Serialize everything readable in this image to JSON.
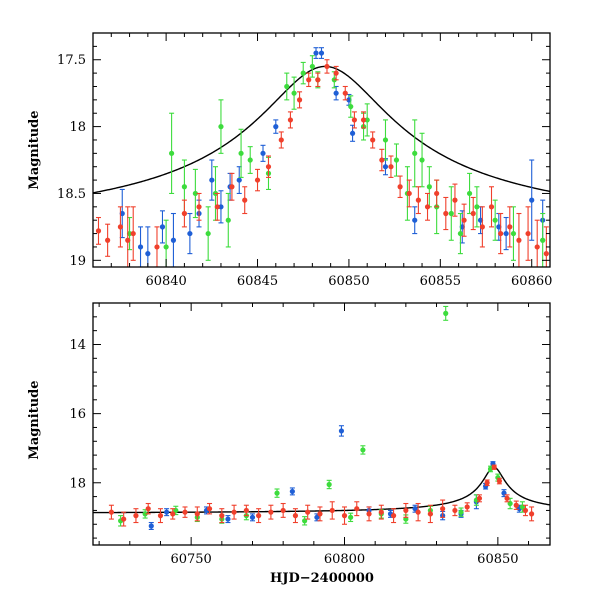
{
  "colors": {
    "blue": "#1f5fd6",
    "green": "#3ddc3d",
    "red": "#f0402c",
    "model": "#000000"
  },
  "chart_data": [
    {
      "type": "scatter",
      "title": "",
      "xlabel": "",
      "ylabel": "Magnitude",
      "xlim": [
        60836,
        60861
      ],
      "ylim": [
        19.05,
        17.3
      ],
      "y_inverted": true,
      "x_ticks": [
        60840,
        60845,
        60850,
        60855,
        60860
      ],
      "y_ticks": [
        17.5,
        18,
        18.5,
        19
      ],
      "x_tick_labels": [
        "60840",
        "60845",
        "60850",
        "60855",
        "60860"
      ],
      "y_tick_labels": [
        "17.5",
        "18",
        "18.5",
        "19"
      ],
      "model_curve": {
        "type": "line",
        "peak_time": 60848.7,
        "peak_mag": 17.55,
        "baseline_mag": 18.85,
        "width_days": 3.6
      },
      "series": [
        {
          "color": "#1f5fd6",
          "points": [
            [
              60837.6,
              18.65,
              0.18
            ],
            [
              60838.6,
              18.9,
              0.15
            ],
            [
              60839.0,
              18.95,
              0.2
            ],
            [
              60839.8,
              18.75,
              0.12
            ],
            [
              60840.4,
              18.85,
              0.2
            ],
            [
              60841.3,
              18.8,
              0.15
            ],
            [
              60841.8,
              18.65,
              0.1
            ],
            [
              60842.5,
              18.4,
              0.15
            ],
            [
              60843.0,
              18.6,
              0.12
            ],
            [
              60843.5,
              18.45,
              0.1
            ],
            [
              60844.0,
              18.4,
              0.1
            ],
            [
              60845.3,
              18.2,
              0.06
            ],
            [
              60846.0,
              18.0,
              0.05
            ],
            [
              60848.2,
              17.45,
              0.04
            ],
            [
              60848.5,
              17.45,
              0.04
            ],
            [
              60849.3,
              17.75,
              0.05
            ],
            [
              60850.0,
              17.8,
              0.04
            ],
            [
              60850.2,
              18.05,
              0.06
            ],
            [
              60852.0,
              18.3,
              0.06
            ],
            [
              60853.6,
              18.7,
              0.1
            ],
            [
              60856.2,
              18.75,
              0.12
            ],
            [
              60857.2,
              18.7,
              0.1
            ],
            [
              60858.2,
              18.75,
              0.1
            ],
            [
              60858.6,
              18.8,
              0.12
            ],
            [
              60860.0,
              18.55,
              0.3
            ],
            [
              60860.6,
              18.7,
              0.15
            ]
          ]
        },
        {
          "color": "#3ddc3d",
          "points": [
            [
              60838.0,
              18.8,
              0.12
            ],
            [
              60840.0,
              18.9,
              0.2
            ],
            [
              60840.3,
              18.2,
              0.3
            ],
            [
              60841.0,
              18.45,
              0.2
            ],
            [
              60841.6,
              18.5,
              0.18
            ],
            [
              60842.3,
              18.8,
              0.2
            ],
            [
              60842.7,
              18.5,
              0.2
            ],
            [
              60843.0,
              18.0,
              0.2
            ],
            [
              60843.4,
              18.7,
              0.2
            ],
            [
              60844.1,
              18.2,
              0.18
            ],
            [
              60844.6,
              18.25,
              0.1
            ],
            [
              60845.6,
              18.35,
              0.12
            ],
            [
              60846.6,
              17.7,
              0.1
            ],
            [
              60847.0,
              17.75,
              0.12
            ],
            [
              60847.5,
              17.6,
              0.08
            ],
            [
              60848.0,
              17.55,
              0.08
            ],
            [
              60848.3,
              17.65,
              0.06
            ],
            [
              60849.2,
              17.65,
              0.06
            ],
            [
              60850.1,
              17.85,
              0.08
            ],
            [
              60850.8,
              18.0,
              0.1
            ],
            [
              60851.0,
              17.95,
              0.12
            ],
            [
              60852.0,
              18.1,
              0.15
            ],
            [
              60852.6,
              18.25,
              0.12
            ],
            [
              60853.2,
              18.5,
              0.2
            ],
            [
              60853.6,
              18.2,
              0.25
            ],
            [
              60854.0,
              18.25,
              0.2
            ],
            [
              60854.4,
              18.45,
              0.15
            ],
            [
              60854.8,
              18.6,
              0.2
            ],
            [
              60855.6,
              18.65,
              0.2
            ],
            [
              60856.1,
              18.8,
              0.15
            ],
            [
              60856.6,
              18.5,
              0.15
            ],
            [
              60857.0,
              18.6,
              0.15
            ],
            [
              60858.0,
              18.7,
              0.15
            ],
            [
              60859.0,
              18.8,
              0.2
            ],
            [
              60860.6,
              18.85,
              0.2
            ]
          ]
        },
        {
          "color": "#f0402c",
          "points": [
            [
              60836.3,
              18.78,
              0.1
            ],
            [
              60836.8,
              18.85,
              0.12
            ],
            [
              60837.5,
              18.75,
              0.15
            ],
            [
              60837.9,
              18.85,
              0.25
            ],
            [
              60838.2,
              18.8,
              0.2
            ],
            [
              60839.5,
              18.9,
              0.15
            ],
            [
              60841.0,
              18.65,
              0.1
            ],
            [
              60841.8,
              18.6,
              0.1
            ],
            [
              60842.8,
              18.6,
              0.1
            ],
            [
              60843.6,
              18.45,
              0.1
            ],
            [
              60844.3,
              18.55,
              0.1
            ],
            [
              60845.0,
              18.4,
              0.08
            ],
            [
              60845.6,
              18.3,
              0.08
            ],
            [
              60846.3,
              18.1,
              0.06
            ],
            [
              60846.8,
              17.95,
              0.06
            ],
            [
              60847.3,
              17.8,
              0.06
            ],
            [
              60847.8,
              17.65,
              0.05
            ],
            [
              60848.3,
              17.65,
              0.05
            ],
            [
              60848.8,
              17.55,
              0.05
            ],
            [
              60849.3,
              17.6,
              0.05
            ],
            [
              60849.8,
              17.75,
              0.05
            ],
            [
              60850.3,
              17.95,
              0.06
            ],
            [
              60850.8,
              17.95,
              0.06
            ],
            [
              60851.3,
              18.1,
              0.06
            ],
            [
              60851.8,
              18.25,
              0.08
            ],
            [
              60852.3,
              18.3,
              0.08
            ],
            [
              60852.8,
              18.45,
              0.08
            ],
            [
              60853.3,
              18.5,
              0.1
            ],
            [
              60853.8,
              18.55,
              0.1
            ],
            [
              60854.3,
              18.6,
              0.1
            ],
            [
              60854.8,
              18.5,
              0.1
            ],
            [
              60855.3,
              18.65,
              0.12
            ],
            [
              60855.8,
              18.55,
              0.12
            ],
            [
              60856.3,
              18.7,
              0.12
            ],
            [
              60856.8,
              18.65,
              0.12
            ],
            [
              60857.3,
              18.75,
              0.15
            ],
            [
              60857.8,
              18.6,
              0.15
            ],
            [
              60858.3,
              18.8,
              0.15
            ],
            [
              60858.8,
              18.75,
              0.15
            ],
            [
              60859.3,
              18.85,
              0.2
            ],
            [
              60859.8,
              18.8,
              0.2
            ],
            [
              60860.3,
              18.9,
              0.2
            ],
            [
              60860.8,
              18.95,
              0.2
            ]
          ]
        }
      ]
    },
    {
      "type": "scatter",
      "title": "",
      "xlabel": "HJD−2400000",
      "ylabel": "Magnitude",
      "xlim": [
        60718,
        60867
      ],
      "ylim": [
        19.8,
        12.8
      ],
      "y_inverted": true,
      "x_ticks": [
        60750,
        60800,
        60850
      ],
      "y_ticks": [
        14,
        16,
        18
      ],
      "x_tick_labels": [
        "60750",
        "60800",
        "60850"
      ],
      "y_tick_labels": [
        "14",
        "16",
        "18"
      ],
      "model_curve": {
        "type": "line",
        "peak_time": 60848.7,
        "peak_mag": 17.55,
        "baseline_mag": 18.9,
        "width_days": 3.6
      },
      "series": [
        {
          "color": "#1f5fd6",
          "points": [
            [
              60737,
              19.25,
              0.1
            ],
            [
              60742,
              18.85,
              0.1
            ],
            [
              60755,
              18.8,
              0.1
            ],
            [
              60762,
              19.05,
              0.1
            ],
            [
              60770,
              19.0,
              0.1
            ],
            [
              60783,
              18.25,
              0.1
            ],
            [
              60791,
              19.0,
              0.1
            ],
            [
              60799,
              16.5,
              0.15
            ],
            [
              60808,
              18.8,
              0.1
            ],
            [
              60815,
              18.9,
              0.1
            ],
            [
              60823,
              18.75,
              0.1
            ],
            [
              60832,
              18.95,
              0.12
            ],
            [
              60838,
              18.9,
              0.1
            ],
            [
              60843,
              18.55,
              0.2
            ],
            [
              60846,
              18.1,
              0.08
            ],
            [
              60848.4,
              17.45,
              0.06
            ],
            [
              60852,
              18.3,
              0.1
            ],
            [
              60857,
              18.75,
              0.1
            ]
          ]
        },
        {
          "color": "#3ddc3d",
          "points": [
            [
              60727,
              19.1,
              0.15
            ],
            [
              60735,
              18.9,
              0.12
            ],
            [
              60745,
              18.8,
              0.12
            ],
            [
              60752,
              19.0,
              0.12
            ],
            [
              60760,
              19.05,
              0.12
            ],
            [
              60768,
              18.95,
              0.12
            ],
            [
              60778,
              18.3,
              0.12
            ],
            [
              60787,
              19.1,
              0.12
            ],
            [
              60795,
              18.05,
              0.12
            ],
            [
              60802,
              19.0,
              0.12
            ],
            [
              60806,
              17.05,
              0.12
            ],
            [
              60812,
              18.9,
              0.12
            ],
            [
              60820,
              19.05,
              0.12
            ],
            [
              60828,
              18.8,
              0.12
            ],
            [
              60833,
              13.1,
              0.2
            ],
            [
              60838,
              18.85,
              0.12
            ],
            [
              60843,
              18.5,
              0.15
            ],
            [
              60847.6,
              17.6,
              0.08
            ],
            [
              60850,
              17.85,
              0.1
            ],
            [
              60854,
              18.6,
              0.15
            ],
            [
              60858,
              18.7,
              0.15
            ]
          ]
        },
        {
          "color": "#f0402c",
          "points": [
            [
              60724,
              18.85,
              0.2
            ],
            [
              60728,
              19.05,
              0.2
            ],
            [
              60732,
              18.95,
              0.2
            ],
            [
              60736,
              18.75,
              0.15
            ],
            [
              60740,
              18.95,
              0.2
            ],
            [
              60744,
              18.9,
              0.15
            ],
            [
              60748,
              18.85,
              0.15
            ],
            [
              60752,
              18.9,
              0.2
            ],
            [
              60756,
              18.75,
              0.15
            ],
            [
              60760,
              18.95,
              0.2
            ],
            [
              60764,
              18.85,
              0.2
            ],
            [
              60768,
              18.8,
              0.15
            ],
            [
              60772,
              18.95,
              0.2
            ],
            [
              60776,
              18.85,
              0.2
            ],
            [
              60780,
              18.8,
              0.2
            ],
            [
              60784,
              18.95,
              0.2
            ],
            [
              60788,
              18.85,
              0.2
            ],
            [
              60792,
              18.9,
              0.2
            ],
            [
              60796,
              18.8,
              0.25
            ],
            [
              60800,
              18.95,
              0.25
            ],
            [
              60804,
              18.75,
              0.2
            ],
            [
              60808,
              18.9,
              0.2
            ],
            [
              60812,
              18.85,
              0.2
            ],
            [
              60816,
              18.95,
              0.2
            ],
            [
              60820,
              18.8,
              0.2
            ],
            [
              60824,
              18.85,
              0.25
            ],
            [
              60828,
              18.9,
              0.25
            ],
            [
              60832,
              18.75,
              0.25
            ],
            [
              60836,
              18.8,
              0.15
            ],
            [
              60840,
              18.7,
              0.12
            ],
            [
              60844,
              18.45,
              0.1
            ],
            [
              60846.5,
              18.0,
              0.08
            ],
            [
              60848.8,
              17.55,
              0.06
            ],
            [
              60850.5,
              17.95,
              0.08
            ],
            [
              60853,
              18.45,
              0.1
            ],
            [
              60856,
              18.65,
              0.12
            ],
            [
              60859,
              18.8,
              0.15
            ],
            [
              60861,
              18.9,
              0.2
            ]
          ]
        }
      ]
    }
  ]
}
